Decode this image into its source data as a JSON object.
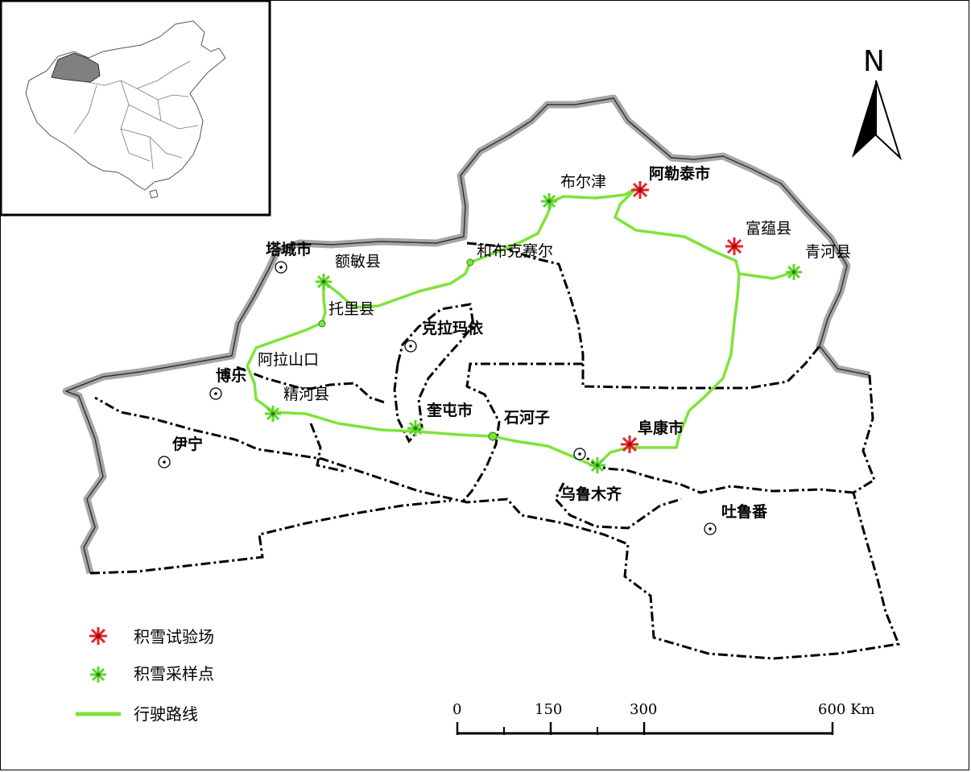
{
  "north_label": "N",
  "labels": {
    "tacheng": "塔城市",
    "emin": "额敏县",
    "tuoli": "托里县",
    "alashankou": "阿拉山口",
    "bole": "博乐",
    "jinghe": "精河县",
    "yining": "伊宁",
    "hebukesaier": "和布克赛尔",
    "buerjin": "布尔津",
    "aletai": "阿勒泰市",
    "fuyun": "富蕴县",
    "qinghe": "青河县",
    "kelamayi": "克拉玛依",
    "kuitun": "奎屯市",
    "shihezi": "石河子",
    "fukang": "阜康市",
    "wulumuqi": "乌鲁木齐",
    "tulufan": "吐鲁番"
  },
  "legend": {
    "test_site": "积雪试验场",
    "sample_point": "积雪采样点",
    "route": "行驶路线"
  },
  "scale": {
    "ticks": [
      "0",
      "150",
      "300",
      "600 Km"
    ]
  },
  "colors": {
    "route": "#7fe33a",
    "test_site": "#e8222a",
    "sample_point": "#5dd62c",
    "outer_border": "#a6a6a6",
    "inset_highlight": "#808080"
  },
  "icons": {
    "test_site": "red-asterisk-icon",
    "sample_point": "green-asterisk-icon",
    "city": "city-dot-icon"
  }
}
